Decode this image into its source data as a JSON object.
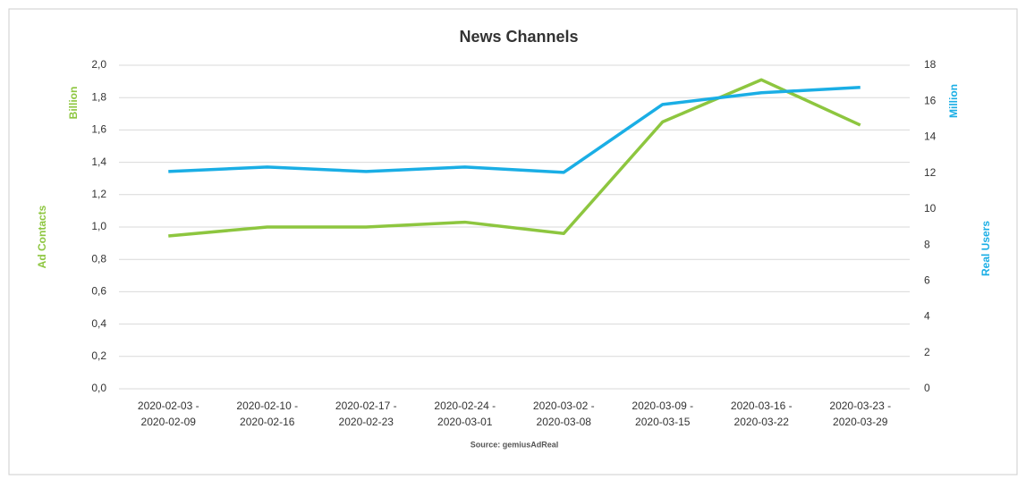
{
  "chart_data": {
    "type": "line",
    "title": "News Channels",
    "source": "Source: gemiusAdReal",
    "y_label": "Ad Contacts",
    "y_unit": "Billion",
    "y2_label": "Real Users",
    "y2_unit": "Million",
    "categories": [
      "2020-02-03 -\n2020-02-09",
      "2020-02-10 -\n2020-02-16",
      "2020-02-17 -\n2020-02-23",
      "2020-02-24 -\n2020-03-01",
      "2020-03-02 -\n2020-03-08",
      "2020-03-09 -\n2020-03-15",
      "2020-03-16 -\n2020-03-22",
      "2020-03-23 -\n2020-03-29"
    ],
    "series": [
      {
        "name": "Ad Contacts",
        "color": "#8dc63f",
        "values": [
          0.945,
          1.0,
          1.0,
          1.03,
          0.96,
          1.65,
          1.91,
          1.63
        ]
      },
      {
        "name": "Real Users",
        "color": "#1aaee5",
        "axis": "y2",
        "values": [
          12.09,
          12.34,
          12.09,
          12.34,
          12.04,
          15.82,
          16.47,
          16.77
        ]
      }
    ],
    "ylim": [
      0,
      2
    ],
    "yticks": [
      {
        "value": 0,
        "label": "0,0"
      },
      {
        "value": 0.2,
        "label": "0,2"
      },
      {
        "value": 0.4,
        "label": "0,4"
      },
      {
        "value": 0.6,
        "label": "0,6"
      },
      {
        "value": 0.8,
        "label": "0,8"
      },
      {
        "value": 1,
        "label": "1,0"
      },
      {
        "value": 1.2,
        "label": "1,2"
      },
      {
        "value": 1.4,
        "label": "1,4"
      },
      {
        "value": 1.6,
        "label": "1,6"
      },
      {
        "value": 1.8,
        "label": "1,8"
      },
      {
        "value": 2,
        "label": "2,0"
      }
    ],
    "y2lim": [
      0,
      18
    ],
    "y2ticks": [
      0,
      2,
      4,
      6,
      8,
      10,
      12,
      14,
      16,
      18
    ],
    "grid": true
  }
}
